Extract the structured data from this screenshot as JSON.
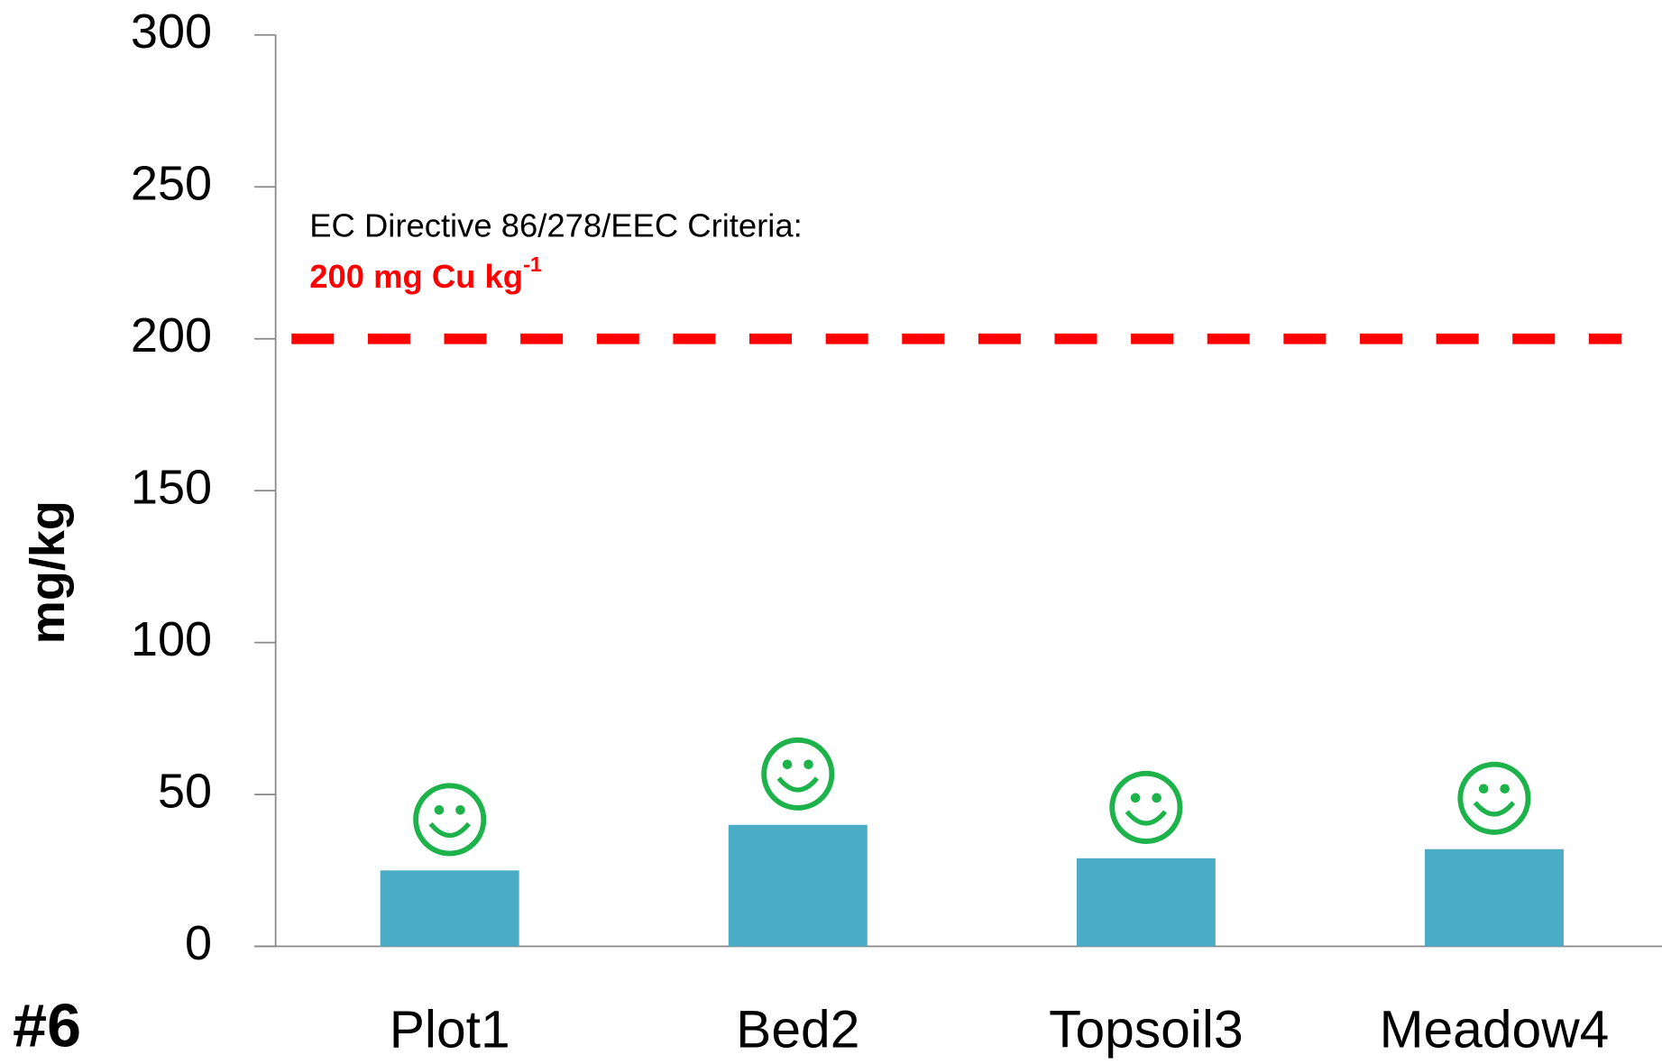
{
  "chart_data": {
    "type": "bar",
    "panel_label": "#6",
    "y_label": "mg/kg",
    "categories": [
      "Plot1",
      "Bed2",
      "Topsoil3",
      "Meadow4"
    ],
    "values": [
      25,
      40,
      29,
      32
    ],
    "color": "#4bacc6",
    "ylim": [
      0,
      300
    ],
    "yticks": [
      0,
      50,
      100,
      150,
      200,
      250,
      300
    ],
    "reference_line": {
      "value": 200,
      "color": "#ff0000",
      "label": "EC Directive 86/278/EEC Criteria:",
      "sublabel": "200 mg Cu kg",
      "sublabel_superscript": "-1"
    }
  }
}
